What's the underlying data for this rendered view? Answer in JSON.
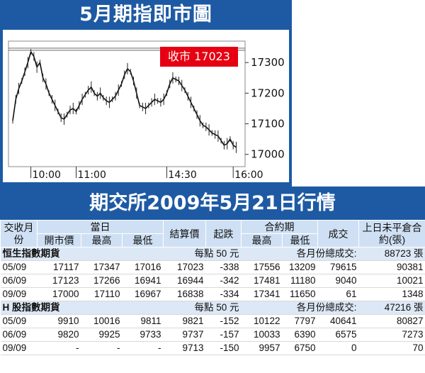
{
  "chart": {
    "title": "5月期指即市圖",
    "close_label": "收市 17023"
  },
  "chart_data": {
    "type": "line",
    "title": "5月期指即市圖",
    "annotation": "收市 17023",
    "ylim": [
      16960,
      17370
    ],
    "y_ticks": [
      17000,
      17100,
      17200,
      17300
    ],
    "x_tick_labels": [
      "10:00",
      "11:00",
      "14:30",
      "16:00"
    ],
    "x_tick_positions": [
      6,
      21,
      51,
      73
    ],
    "x_range": [
      0,
      76
    ],
    "ref_lines": [
      17347,
      17340
    ],
    "series": [
      {
        "values": [
          17110,
          17180,
          17215,
          17240,
          17270,
          17300,
          17335,
          17320,
          17285,
          17300,
          17250,
          17230,
          17200,
          17180,
          17160,
          17140,
          17120,
          17115,
          17130,
          17145,
          17150,
          17140,
          17160,
          17180,
          17195,
          17210,
          17220,
          17200,
          17190,
          17200,
          17185,
          17175,
          17170,
          17180,
          17190,
          17210,
          17230,
          17260,
          17280,
          17270,
          17240,
          17200,
          17160,
          17155,
          17150,
          17160,
          17170,
          17180,
          17175,
          17170,
          17180,
          17200,
          17230,
          17250,
          17245,
          17240,
          17225,
          17210,
          17190,
          17170,
          17150,
          17130,
          17110,
          17095,
          17090,
          17080,
          17070,
          17065,
          17060,
          17045,
          17030,
          17035,
          17050,
          17030,
          17023
        ]
      }
    ]
  },
  "table": {
    "title": "期交所2009年5月21日行情",
    "headers": {
      "month": "交收月份",
      "today": "當日",
      "open": "開市價",
      "high": "最高",
      "low": "最低",
      "settle": "結算價",
      "change": "起跌",
      "contract": "合約期",
      "c_high": "最高",
      "c_low": "最低",
      "volume": "成交",
      "oi": "上日未平倉合約(張)"
    },
    "sections": [
      {
        "name": "恒生指數期貨",
        "point_value": "每點 50 元",
        "total_label": "各月份總成交:",
        "total": "88723 張",
        "rows": [
          [
            "05/09",
            "17117",
            "17347",
            "17016",
            "17023",
            "-338",
            "17556",
            "13209",
            "79615",
            "90381"
          ],
          [
            "06/09",
            "17123",
            "17266",
            "16941",
            "16944",
            "-342",
            "17481",
            "11180",
            "9040",
            "10021"
          ],
          [
            "09/09",
            "17000",
            "17110",
            "16967",
            "16838",
            "-334",
            "17341",
            "11650",
            "61",
            "1348"
          ]
        ]
      },
      {
        "name": "H 股指數期貨",
        "point_value": "每點 50 元",
        "total_label": "各月份總成交:",
        "total": "47216 張",
        "rows": [
          [
            "05/09",
            "9910",
            "10016",
            "9811",
            "9821",
            "-152",
            "10122",
            "7797",
            "40641",
            "80827"
          ],
          [
            "06/09",
            "9820",
            "9925",
            "9733",
            "9737",
            "-157",
            "10033",
            "6390",
            "6575",
            "7273"
          ],
          [
            "09/09",
            "-",
            "-",
            "-",
            "9713",
            "-150",
            "9957",
            "6750",
            "0",
            "70"
          ]
        ]
      }
    ]
  }
}
